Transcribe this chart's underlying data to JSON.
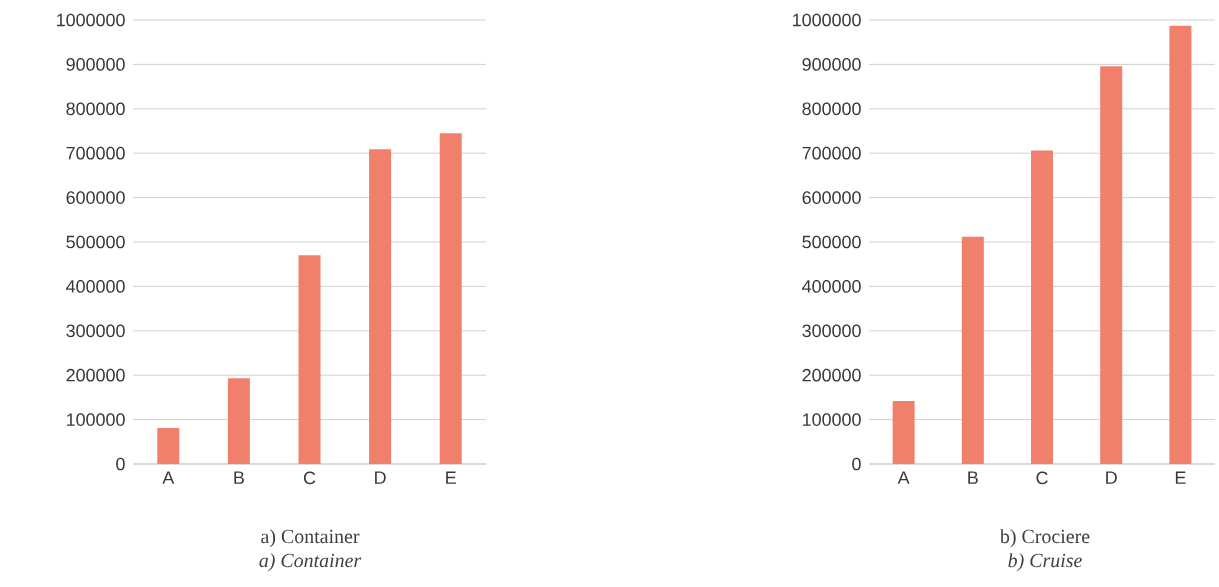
{
  "chart_data": [
    {
      "type": "bar",
      "categories": [
        "A",
        "B",
        "C",
        "D",
        "E"
      ],
      "values": [
        81000,
        193000,
        470000,
        709000,
        745000
      ],
      "color": "#f07f6b",
      "ylim": [
        0,
        1000000
      ],
      "yticks": [
        0,
        100000,
        200000,
        300000,
        400000,
        500000,
        600000,
        700000,
        800000,
        900000,
        1000000
      ],
      "grid": "y",
      "annotations": [
        "a) Container",
        "a) Container"
      ]
    },
    {
      "type": "bar",
      "categories": [
        "A",
        "B",
        "C",
        "D",
        "E"
      ],
      "values": [
        142000,
        512000,
        706000,
        896000,
        987000
      ],
      "color": "#f07f6b",
      "ylim": [
        0,
        1000000
      ],
      "yticks": [
        0,
        100000,
        200000,
        300000,
        400000,
        500000,
        600000,
        700000,
        800000,
        900000,
        1000000
      ],
      "grid": "y",
      "annotations": [
        "b) Crociere",
        "b) Cruise"
      ]
    }
  ]
}
